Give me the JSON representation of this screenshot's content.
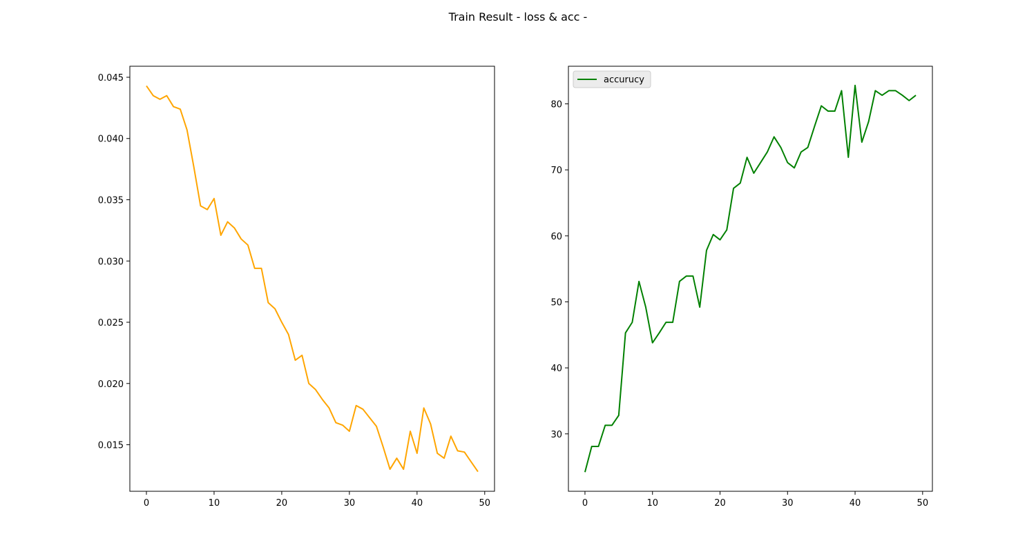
{
  "figure": {
    "title": "Train Result - loss & acc -"
  },
  "chart_data": [
    {
      "type": "line",
      "title": "",
      "xlabel": "",
      "ylabel": "",
      "xlim": [
        -2.45,
        51.45
      ],
      "ylim": [
        0.0112,
        0.0459
      ],
      "xticks": [
        0,
        10,
        20,
        30,
        40,
        50
      ],
      "yticks": [
        0.015,
        0.02,
        0.025,
        0.03,
        0.035,
        0.04,
        0.045
      ],
      "ytick_labels": [
        "0.015",
        "0.020",
        "0.025",
        "0.030",
        "0.035",
        "0.040",
        "0.045"
      ],
      "grid": false,
      "legend": null,
      "series": [
        {
          "color": "#ffa500",
          "x": [
            0,
            1,
            2,
            3,
            4,
            5,
            6,
            7,
            8,
            9,
            10,
            11,
            12,
            13,
            14,
            15,
            16,
            17,
            18,
            19,
            20,
            21,
            22,
            23,
            24,
            25,
            26,
            27,
            28,
            29,
            30,
            31,
            32,
            33,
            34,
            35,
            36,
            37,
            38,
            39,
            40,
            41,
            42,
            43,
            44,
            45,
            46,
            47,
            48,
            49
          ],
          "values": [
            0.0443,
            0.0435,
            0.0432,
            0.0435,
            0.0426,
            0.0424,
            0.0407,
            0.0377,
            0.0345,
            0.0342,
            0.0351,
            0.0321,
            0.0332,
            0.0327,
            0.0318,
            0.0313,
            0.0294,
            0.0294,
            0.0266,
            0.0261,
            0.025,
            0.024,
            0.0219,
            0.0223,
            0.02,
            0.0195,
            0.0187,
            0.018,
            0.0168,
            0.0166,
            0.0161,
            0.0182,
            0.0179,
            0.0172,
            0.0165,
            0.0148,
            0.013,
            0.0139,
            0.013,
            0.0161,
            0.0143,
            0.018,
            0.0167,
            0.0143,
            0.0139,
            0.0157,
            0.0145,
            0.0144,
            0.0136,
            0.0128
          ]
        }
      ]
    },
    {
      "type": "line",
      "title": "",
      "xlabel": "",
      "ylabel": "",
      "xlim": [
        -2.45,
        51.45
      ],
      "ylim": [
        21.3,
        85.7
      ],
      "xticks": [
        0,
        10,
        20,
        30,
        40,
        50
      ],
      "yticks": [
        30,
        40,
        50,
        60,
        70,
        80
      ],
      "ytick_labels": [
        "30",
        "40",
        "50",
        "60",
        "70",
        "80"
      ],
      "grid": false,
      "legend": "top-left",
      "series": [
        {
          "name": "accurucy",
          "color": "#008000",
          "x": [
            0,
            1,
            2,
            3,
            4,
            5,
            6,
            7,
            8,
            9,
            10,
            11,
            12,
            13,
            14,
            15,
            16,
            17,
            18,
            19,
            20,
            21,
            22,
            23,
            24,
            25,
            26,
            27,
            28,
            29,
            30,
            31,
            32,
            33,
            34,
            35,
            36,
            37,
            38,
            39,
            40,
            41,
            42,
            43,
            44,
            45,
            46,
            47,
            48,
            49
          ],
          "values": [
            24.2,
            28.1,
            28.1,
            31.3,
            31.3,
            32.8,
            45.3,
            46.9,
            53.1,
            49.2,
            43.8,
            45.3,
            46.9,
            46.9,
            53.1,
            53.9,
            53.9,
            49.2,
            57.8,
            60.2,
            59.4,
            60.9,
            67.2,
            68.0,
            71.9,
            69.5,
            71.1,
            72.7,
            75.0,
            73.4,
            71.1,
            70.3,
            72.7,
            73.4,
            76.6,
            79.7,
            78.9,
            78.9,
            82.0,
            71.9,
            82.8,
            74.2,
            77.3,
            82.0,
            81.3,
            82.0,
            82.0,
            81.3,
            80.5,
            81.3
          ]
        }
      ]
    }
  ]
}
